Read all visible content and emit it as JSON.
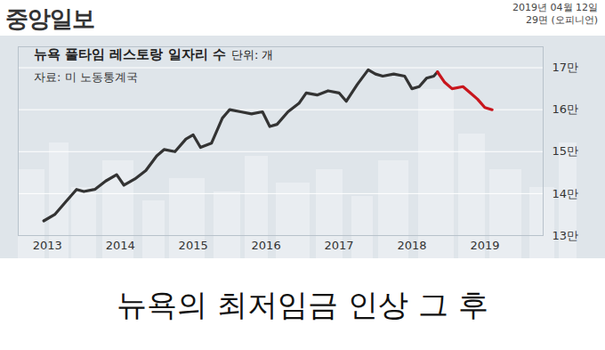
{
  "header": {
    "publication": "중앙일보",
    "date": "2019년 04월 12일",
    "page": "29면 (오피니언)"
  },
  "headline": "뉴욕의 최저임금 인상 그 후",
  "chart_data": {
    "type": "line",
    "title": "뉴욕 풀타임 레스토랑 일자리 수",
    "unit": "단위: 개",
    "source": "자료: 미 노동통계국",
    "x": [
      2012.95,
      2013.1,
      2013.25,
      2013.4,
      2013.5,
      2013.65,
      2013.8,
      2013.95,
      2014.05,
      2014.2,
      2014.35,
      2014.5,
      2014.6,
      2014.75,
      2014.9,
      2015.0,
      2015.1,
      2015.25,
      2015.4,
      2015.5,
      2015.65,
      2015.8,
      2015.95,
      2016.05,
      2016.15,
      2016.3,
      2016.45,
      2016.55,
      2016.7,
      2016.85,
      2017.0,
      2017.1,
      2017.25,
      2017.4,
      2017.5,
      2017.6,
      2017.75,
      2017.9,
      2018.0,
      2018.1,
      2018.2,
      2018.3,
      2018.35,
      2018.45,
      2018.55,
      2018.7,
      2018.8,
      2018.9,
      2019.0,
      2019.1
    ],
    "series": [
      {
        "color": "#333333",
        "values": [
          133500,
          135000,
          138000,
          141000,
          140500,
          141000,
          143000,
          144500,
          142000,
          143500,
          145500,
          149000,
          150500,
          150000,
          153000,
          154000,
          151000,
          152000,
          158000,
          160000,
          159500,
          159000,
          159500,
          156000,
          156500,
          159500,
          161500,
          164000,
          163500,
          164500,
          164000,
          162000,
          166000,
          169500,
          168500,
          168000,
          168500,
          168000,
          165000,
          165500,
          167500,
          168000,
          169000,
          null,
          null,
          null,
          null,
          null,
          null,
          null
        ]
      },
      {
        "color": "#c8161d",
        "values": [
          null,
          null,
          null,
          null,
          null,
          null,
          null,
          null,
          null,
          null,
          null,
          null,
          null,
          null,
          null,
          null,
          null,
          null,
          null,
          null,
          null,
          null,
          null,
          null,
          null,
          null,
          null,
          null,
          null,
          null,
          null,
          null,
          null,
          null,
          null,
          null,
          null,
          null,
          null,
          null,
          null,
          null,
          169000,
          166500,
          165000,
          165500,
          164000,
          162500,
          160500,
          160000
        ]
      }
    ],
    "xlim": [
      2012.6,
      2019.8
    ],
    "xticks": [
      2013,
      2014,
      2015,
      2016,
      2017,
      2018,
      2019
    ],
    "ylim": [
      130000,
      175000
    ],
    "yticks": [
      {
        "value": 130000,
        "label": "13만"
      },
      {
        "value": 140000,
        "label": "14만"
      },
      {
        "value": 150000,
        "label": "15만"
      },
      {
        "value": 160000,
        "label": "16만"
      },
      {
        "value": 170000,
        "label": "17만"
      }
    ],
    "grid": true
  }
}
